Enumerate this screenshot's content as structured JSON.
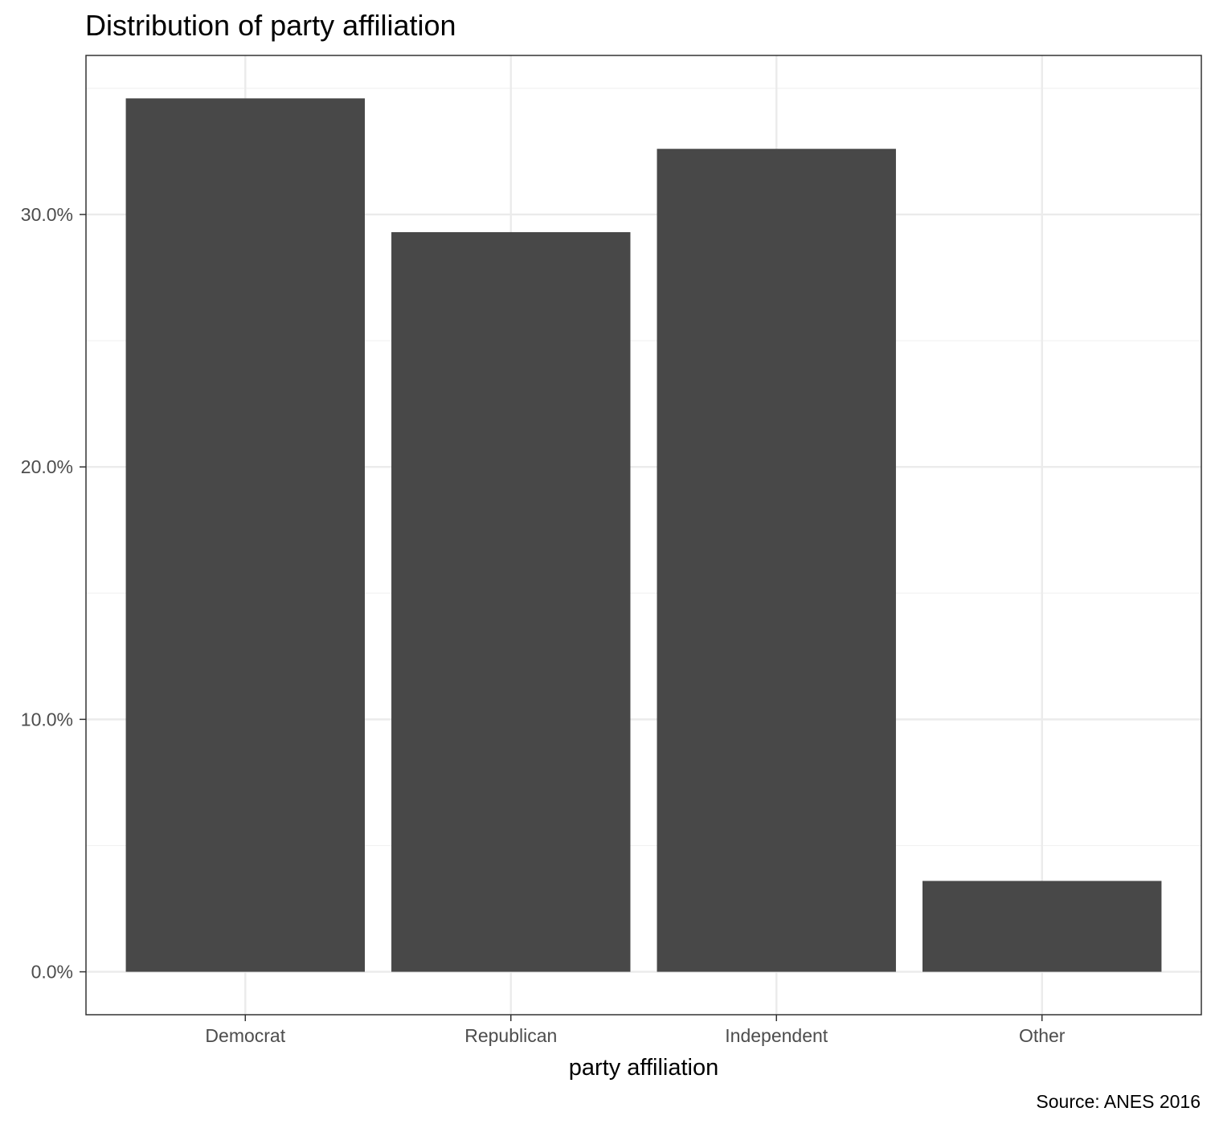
{
  "chart_data": {
    "type": "bar",
    "title": "Distribution of party affiliation",
    "xlabel": "party affiliation",
    "ylabel": "",
    "caption": "Source: ANES 2016",
    "categories": [
      "Democrat",
      "Republican",
      "Independent",
      "Other"
    ],
    "values": [
      34.6,
      29.3,
      32.6,
      3.6
    ],
    "ylim": [
      -1.7,
      36.3
    ],
    "yticks": [
      0,
      10,
      20,
      30
    ],
    "ytick_labels": [
      "0.0%",
      "10.0%",
      "20.0%",
      "30.0%"
    ],
    "grid": true,
    "legend": "none",
    "colors": {
      "bar": "#484848",
      "grid_major": "#ebebeb",
      "grid_minor": "#f2f2f2",
      "panel_border": "#333333",
      "tick_text": "#4d4d4d"
    }
  }
}
